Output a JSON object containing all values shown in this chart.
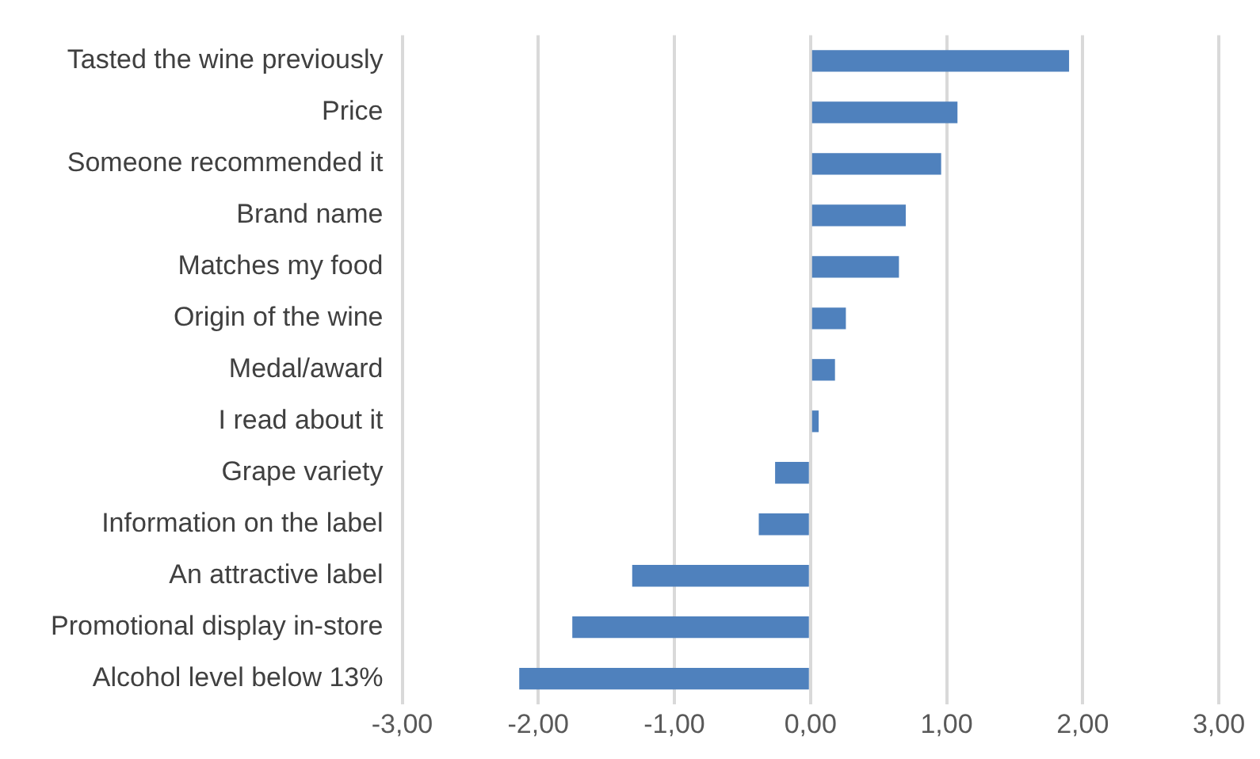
{
  "chart_data": {
    "type": "bar",
    "orientation": "horizontal",
    "categories": [
      "Tasted the wine previously",
      "Price",
      "Someone recommended it",
      "Brand name",
      "Matches my food",
      "Origin of the wine",
      "Medal/award",
      "I read about it",
      "Grape variety",
      "Information on the label",
      "An attractive label",
      "Promotional display in-store",
      "Alcohol level below 13%"
    ],
    "values": [
      1.9,
      1.08,
      0.96,
      0.7,
      0.65,
      0.26,
      0.18,
      0.06,
      -0.26,
      -0.38,
      -1.31,
      -1.75,
      -2.14
    ],
    "color": "#4f81bd",
    "xlim": [
      -3,
      3
    ],
    "xticks": [
      {
        "value": -3,
        "label": "-3,00"
      },
      {
        "value": -2,
        "label": "-2,00"
      },
      {
        "value": -1,
        "label": "-1,00"
      },
      {
        "value": 0,
        "label": "0,00"
      },
      {
        "value": 1,
        "label": "1,00"
      },
      {
        "value": 2,
        "label": "2,00"
      },
      {
        "value": 3,
        "label": "3,00"
      }
    ],
    "grid": "x",
    "legend": false
  }
}
